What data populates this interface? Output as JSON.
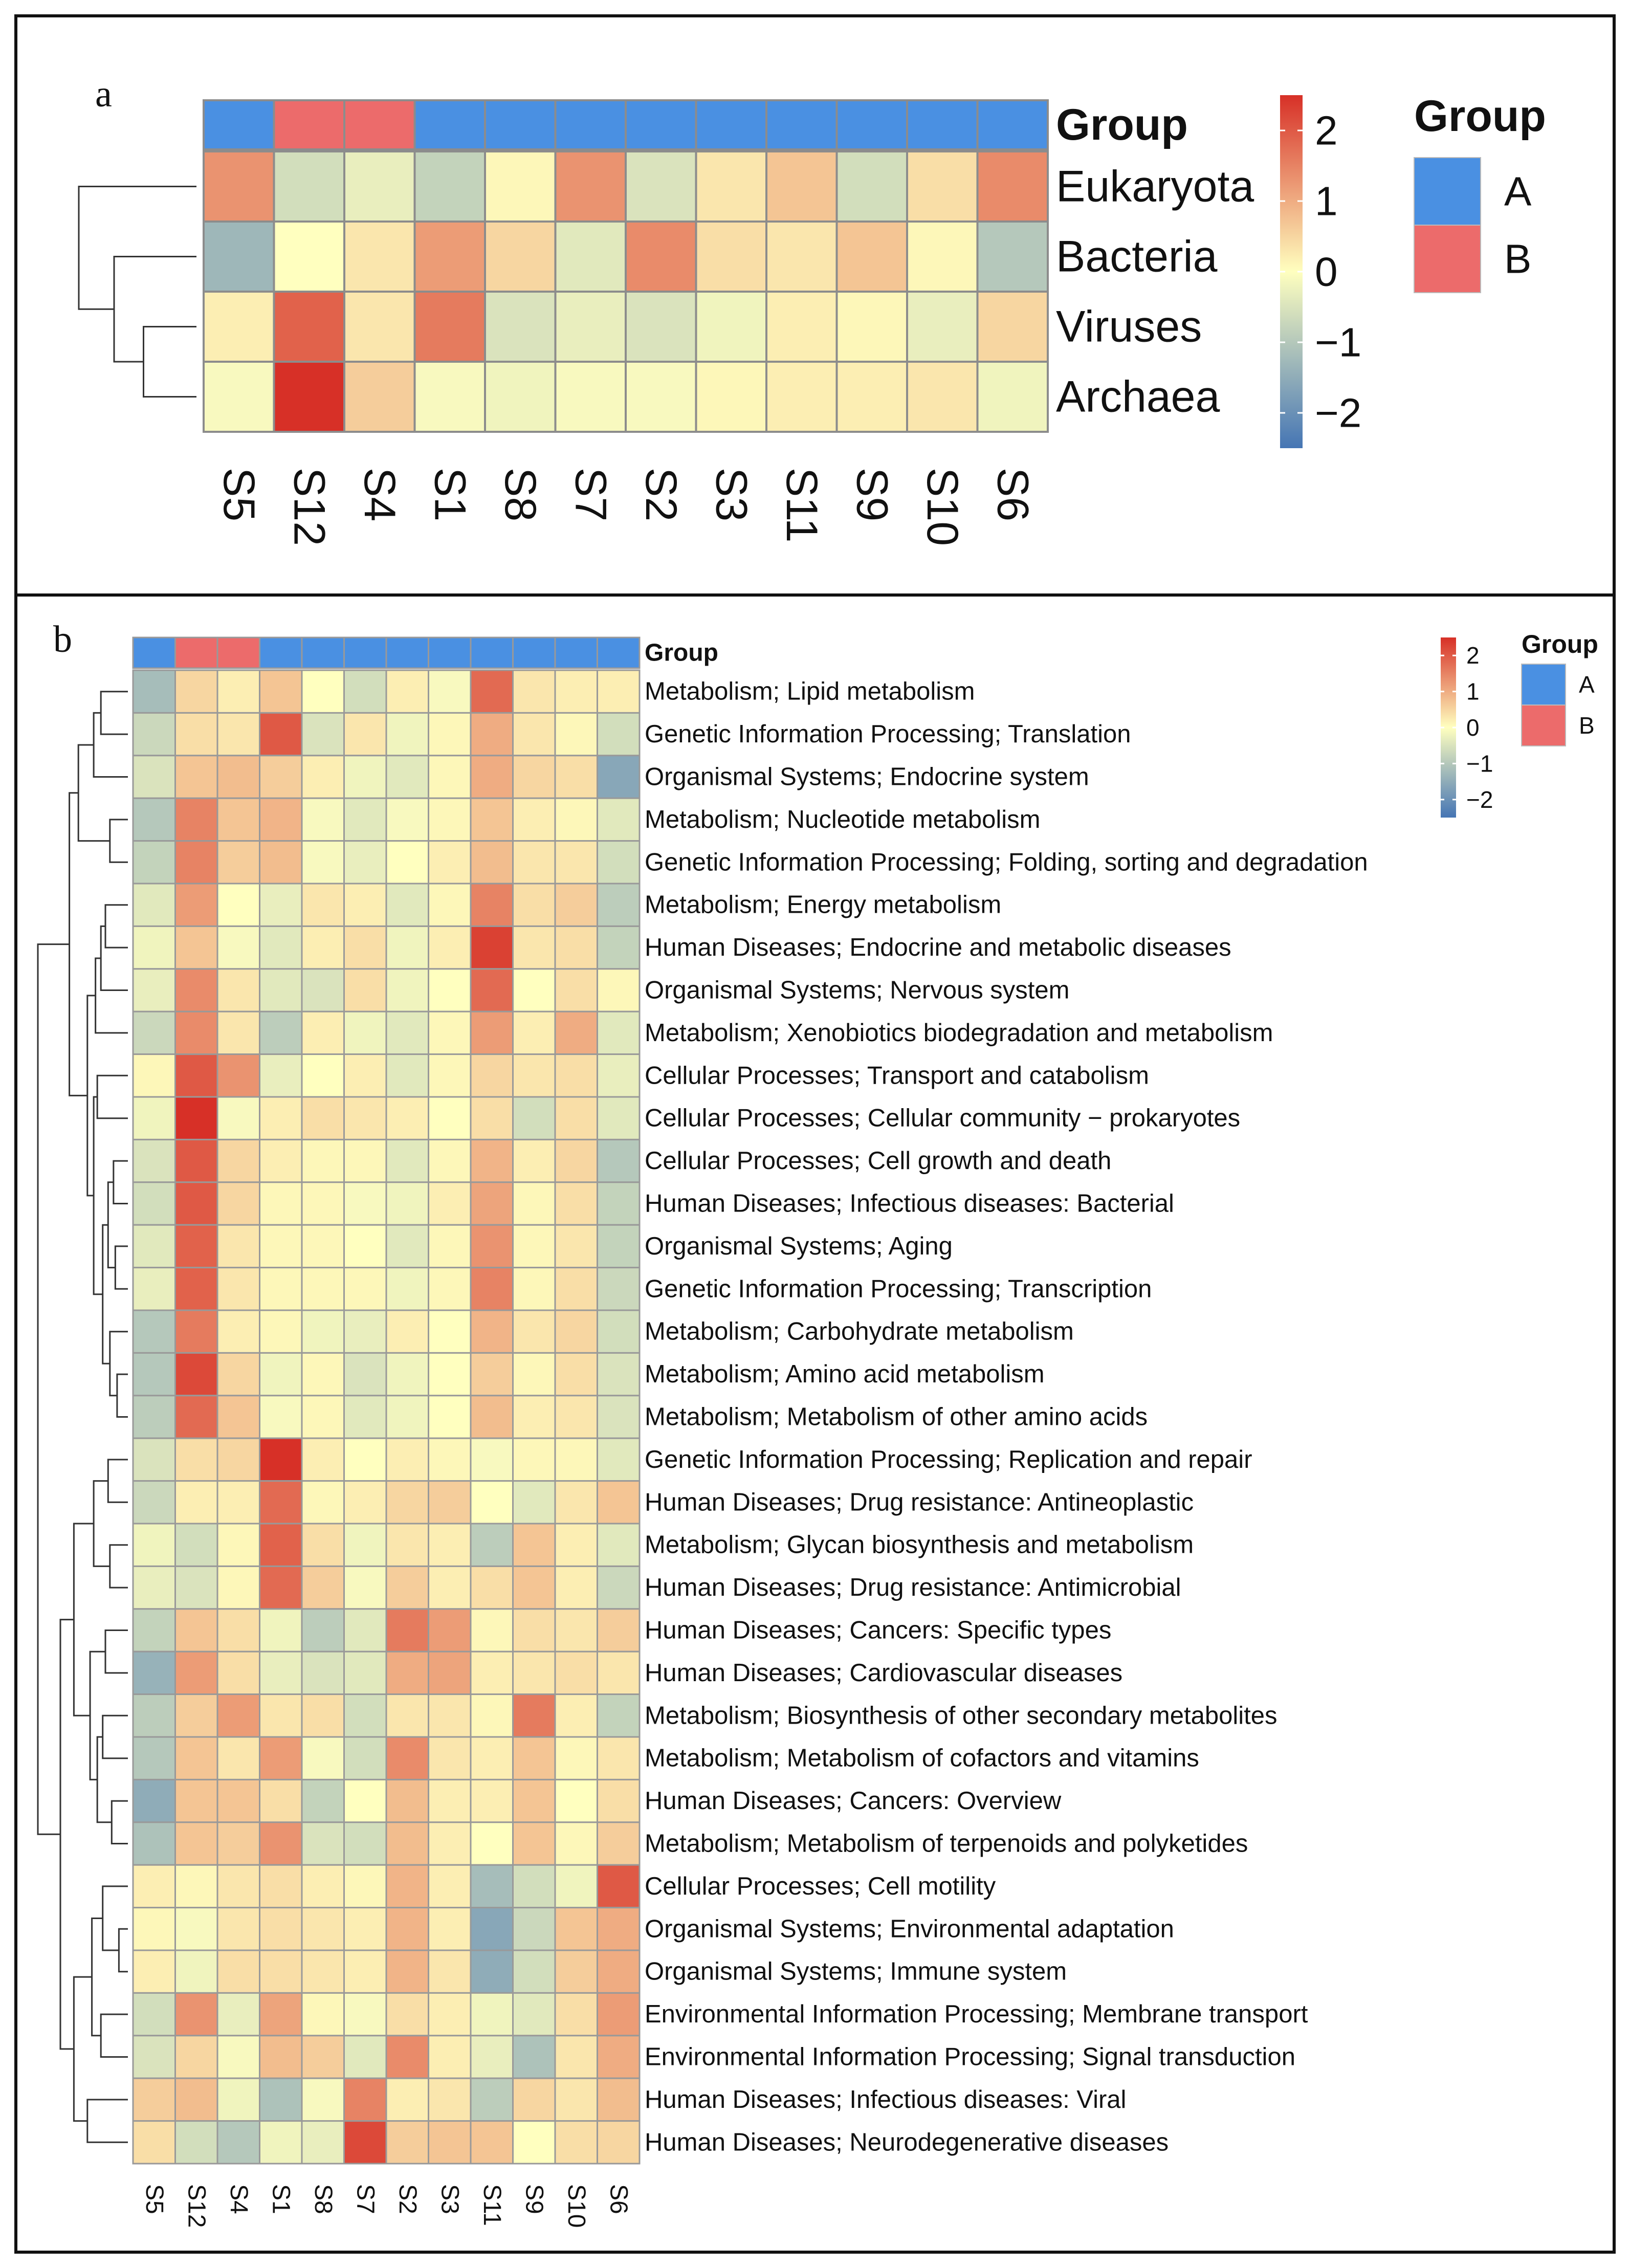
{
  "panels": {
    "a": {
      "label": "a"
    },
    "b": {
      "label": "b"
    }
  },
  "chart_data": [
    {
      "id": "a",
      "type": "heatmap",
      "title": "",
      "samples": [
        "S5",
        "S12",
        "S4",
        "S1",
        "S8",
        "S7",
        "S2",
        "S3",
        "S11",
        "S9",
        "S10",
        "S6"
      ],
      "sample_groups": [
        "A",
        "B",
        "B",
        "A",
        "A",
        "A",
        "A",
        "A",
        "A",
        "A",
        "A",
        "A"
      ],
      "group_annotation_label": "Group",
      "rows": [
        "Eukaryota",
        "Bacteria",
        "Viruses",
        "Archaea"
      ],
      "values": [
        [
          1.3,
          -0.6,
          -0.3,
          -0.8,
          0.1,
          1.3,
          -0.5,
          0.3,
          0.7,
          -0.6,
          0.4,
          1.4
        ],
        [
          -1.3,
          0.0,
          0.3,
          1.2,
          0.5,
          -0.4,
          1.4,
          0.4,
          0.3,
          0.7,
          0.1,
          -1.0
        ],
        [
          0.2,
          1.9,
          0.3,
          1.6,
          -0.5,
          -0.3,
          -0.5,
          -0.2,
          0.2,
          0.1,
          -0.3,
          0.5
        ],
        [
          -0.1,
          2.5,
          0.6,
          -0.1,
          -0.2,
          -0.1,
          -0.1,
          0.1,
          0.2,
          0.2,
          0.3,
          -0.2
        ]
      ],
      "color_scale": {
        "min": -2.5,
        "max": 2.5,
        "low": "#4575b4",
        "mid": "#ffffbf",
        "high": "#d73027"
      },
      "colorbar_ticks": [
        2,
        1,
        0,
        -1,
        -2
      ],
      "colorbar_tick_labels": [
        "2",
        "1",
        "0",
        "−1",
        "−2"
      ],
      "legend": {
        "title": "Group",
        "items": [
          {
            "label": "A",
            "color": "#4a90e2"
          },
          {
            "label": "B",
            "color": "#ec6b6b"
          }
        ]
      }
    },
    {
      "id": "b",
      "type": "heatmap",
      "title": "",
      "samples": [
        "S5",
        "S12",
        "S4",
        "S1",
        "S8",
        "S7",
        "S2",
        "S3",
        "S11",
        "S9",
        "S10",
        "S6"
      ],
      "sample_groups": [
        "A",
        "B",
        "B",
        "A",
        "A",
        "A",
        "A",
        "A",
        "A",
        "A",
        "A",
        "A"
      ],
      "group_annotation_label": "Group",
      "rows": [
        "Metabolism; Lipid metabolism",
        "Genetic Information Processing; Translation",
        "Organismal Systems; Endocrine system",
        "Metabolism; Nucleotide metabolism",
        "Genetic Information Processing; Folding, sorting and degradation",
        "Metabolism; Energy metabolism",
        "Human Diseases; Endocrine and metabolic diseases",
        "Organismal Systems; Nervous system",
        "Metabolism; Xenobiotics biodegradation and metabolism",
        "Cellular Processes; Transport and catabolism",
        "Cellular Processes; Cellular community − prokaryotes",
        "Cellular Processes; Cell growth and death",
        "Human Diseases; Infectious diseases: Bacterial",
        "Organismal Systems; Aging",
        "Genetic Information Processing; Transcription",
        "Metabolism; Carbohydrate metabolism",
        "Metabolism; Amino acid metabolism",
        "Metabolism; Metabolism of other amino acids",
        "Genetic Information Processing; Replication and repair",
        "Human Diseases; Drug resistance: Antineoplastic",
        "Metabolism; Glycan biosynthesis and metabolism",
        "Human Diseases; Drug resistance: Antimicrobial",
        "Human Diseases; Cancers: Specific types",
        "Human Diseases; Cardiovascular diseases",
        "Metabolism; Biosynthesis of other secondary metabolites",
        "Metabolism; Metabolism of cofactors and vitamins",
        "Human Diseases; Cancers: Overview",
        "Metabolism; Metabolism of terpenoids and polyketides",
        "Cellular Processes; Cell motility",
        "Organismal Systems; Environmental adaptation",
        "Organismal Systems; Immune system",
        "Environmental Information Processing; Membrane transport",
        "Environmental Information Processing; Signal transduction",
        "Human Diseases; Infectious diseases: Viral",
        "Human Diseases; Neurodegenerative diseases"
      ],
      "values": [
        [
          -1.2,
          0.5,
          0.2,
          0.7,
          0.0,
          -0.6,
          0.2,
          -0.1,
          1.8,
          0.3,
          0.2,
          0.2
        ],
        [
          -0.7,
          0.4,
          0.3,
          2.0,
          -0.5,
          0.3,
          -0.2,
          0.1,
          1.0,
          0.3,
          0.1,
          -0.6
        ],
        [
          -0.5,
          0.7,
          0.8,
          0.6,
          0.2,
          -0.2,
          -0.4,
          0.1,
          1.0,
          0.5,
          0.4,
          -1.6
        ],
        [
          -1.0,
          1.5,
          0.7,
          0.9,
          -0.1,
          -0.4,
          -0.1,
          0.1,
          0.7,
          0.2,
          0.1,
          -0.4
        ],
        [
          -0.8,
          1.5,
          0.6,
          0.8,
          -0.1,
          -0.3,
          0.0,
          0.2,
          0.8,
          0.3,
          0.3,
          -0.6
        ],
        [
          -0.4,
          1.2,
          0.0,
          -0.3,
          0.3,
          0.2,
          -0.4,
          0.1,
          1.5,
          0.4,
          0.6,
          -0.9
        ],
        [
          -0.2,
          0.7,
          -0.1,
          -0.4,
          0.2,
          0.4,
          -0.2,
          0.2,
          2.3,
          0.3,
          0.4,
          -0.8
        ],
        [
          -0.3,
          1.4,
          0.3,
          -0.4,
          -0.5,
          0.4,
          -0.2,
          0.0,
          1.8,
          0.0,
          0.4,
          0.1
        ],
        [
          -0.7,
          1.4,
          0.3,
          -0.9,
          0.2,
          -0.2,
          -0.4,
          0.1,
          1.2,
          0.2,
          1.0,
          -0.4
        ],
        [
          0.1,
          2.0,
          1.3,
          -0.3,
          0.0,
          0.2,
          -0.4,
          0.1,
          0.5,
          0.3,
          0.4,
          -0.3
        ],
        [
          -0.2,
          2.5,
          -0.1,
          0.2,
          0.4,
          0.3,
          0.2,
          0.0,
          0.4,
          -0.6,
          0.4,
          -0.4
        ],
        [
          -0.5,
          2.0,
          0.5,
          0.2,
          0.1,
          0.1,
          -0.4,
          0.1,
          0.9,
          0.2,
          0.5,
          -1.0
        ],
        [
          -0.6,
          2.0,
          0.5,
          0.1,
          0.1,
          -0.1,
          -0.2,
          0.2,
          1.1,
          0.1,
          0.4,
          -0.8
        ],
        [
          -0.4,
          1.9,
          0.3,
          0.1,
          0.1,
          0.0,
          -0.4,
          0.1,
          1.3,
          0.1,
          0.3,
          -0.8
        ],
        [
          -0.3,
          1.9,
          0.3,
          0.1,
          0.1,
          0.1,
          -0.2,
          0.1,
          1.5,
          0.1,
          0.4,
          -0.7
        ],
        [
          -1.0,
          1.6,
          0.2,
          0.1,
          -0.2,
          -0.3,
          0.2,
          0.0,
          0.9,
          0.3,
          0.5,
          -0.6
        ],
        [
          -1.0,
          2.2,
          0.5,
          -0.2,
          0.1,
          -0.5,
          -0.2,
          0.0,
          0.6,
          0.1,
          0.4,
          -0.5
        ],
        [
          -0.9,
          1.8,
          0.7,
          -0.1,
          0.1,
          -0.4,
          -0.2,
          0.0,
          0.8,
          0.2,
          0.3,
          -0.5
        ],
        [
          -0.5,
          0.4,
          0.5,
          2.5,
          0.2,
          0.0,
          0.2,
          0.1,
          -0.1,
          0.1,
          0.1,
          -0.4
        ],
        [
          -0.7,
          0.2,
          0.2,
          1.8,
          0.1,
          0.2,
          0.5,
          0.6,
          0.0,
          -0.4,
          0.3,
          0.7
        ],
        [
          -0.2,
          -0.6,
          0.1,
          1.9,
          0.4,
          -0.2,
          0.3,
          0.2,
          -0.9,
          0.7,
          0.2,
          -0.4
        ],
        [
          -0.3,
          -0.5,
          0.1,
          1.8,
          0.6,
          -0.1,
          0.6,
          0.2,
          0.4,
          0.7,
          0.2,
          -0.7
        ],
        [
          -0.8,
          0.7,
          0.4,
          -0.2,
          -0.9,
          -0.4,
          1.6,
          1.2,
          0.1,
          0.4,
          0.3,
          0.6
        ],
        [
          -1.4,
          1.2,
          0.4,
          -0.3,
          -0.5,
          -0.4,
          1.0,
          1.1,
          0.2,
          0.3,
          0.4,
          0.3
        ],
        [
          -0.9,
          0.6,
          1.2,
          0.3,
          0.4,
          -0.6,
          0.3,
          0.3,
          0.1,
          1.6,
          0.2,
          -0.8
        ],
        [
          -1.0,
          0.7,
          0.3,
          1.2,
          -0.1,
          -0.6,
          1.4,
          0.3,
          0.2,
          0.7,
          0.1,
          0.3
        ],
        [
          -1.5,
          0.7,
          0.7,
          0.4,
          -0.8,
          0.0,
          0.8,
          0.2,
          0.2,
          0.7,
          0.0,
          0.4
        ],
        [
          -1.1,
          0.7,
          0.6,
          1.3,
          -0.5,
          -0.6,
          0.8,
          0.2,
          0.0,
          0.7,
          0.1,
          0.6
        ],
        [
          0.2,
          0.1,
          0.3,
          0.4,
          0.2,
          0.1,
          0.9,
          0.2,
          -1.2,
          -0.6,
          -0.2,
          2.0
        ],
        [
          0.1,
          -0.1,
          0.3,
          0.4,
          0.3,
          0.2,
          0.9,
          0.2,
          -1.6,
          -0.7,
          0.7,
          1.0
        ],
        [
          0.2,
          -0.2,
          0.4,
          0.4,
          0.3,
          0.2,
          0.9,
          0.3,
          -1.5,
          -0.6,
          0.6,
          1.0
        ],
        [
          -0.6,
          1.3,
          -0.3,
          1.1,
          0.1,
          -0.1,
          0.4,
          0.2,
          -0.2,
          -0.4,
          0.4,
          1.2
        ],
        [
          -0.5,
          0.5,
          -0.1,
          0.8,
          0.6,
          -0.4,
          1.4,
          0.2,
          -0.3,
          -1.1,
          0.3,
          1.0
        ],
        [
          0.6,
          0.8,
          -0.2,
          -1.1,
          -0.1,
          1.5,
          0.2,
          0.3,
          -0.9,
          0.5,
          0.3,
          0.8
        ],
        [
          0.4,
          -0.6,
          -1.0,
          -0.2,
          -0.3,
          2.2,
          0.6,
          0.7,
          0.7,
          0.0,
          0.4,
          0.5
        ]
      ],
      "color_scale": {
        "min": -2.5,
        "max": 2.5,
        "low": "#4575b4",
        "mid": "#ffffbf",
        "high": "#d73027"
      },
      "colorbar_ticks": [
        2,
        1,
        0,
        -1,
        -2
      ],
      "colorbar_tick_labels": [
        "2",
        "1",
        "0",
        "−1",
        "−2"
      ],
      "legend": {
        "title": "Group",
        "items": [
          {
            "label": "A",
            "color": "#4a90e2"
          },
          {
            "label": "B",
            "color": "#ec6b6b"
          }
        ]
      }
    }
  ]
}
